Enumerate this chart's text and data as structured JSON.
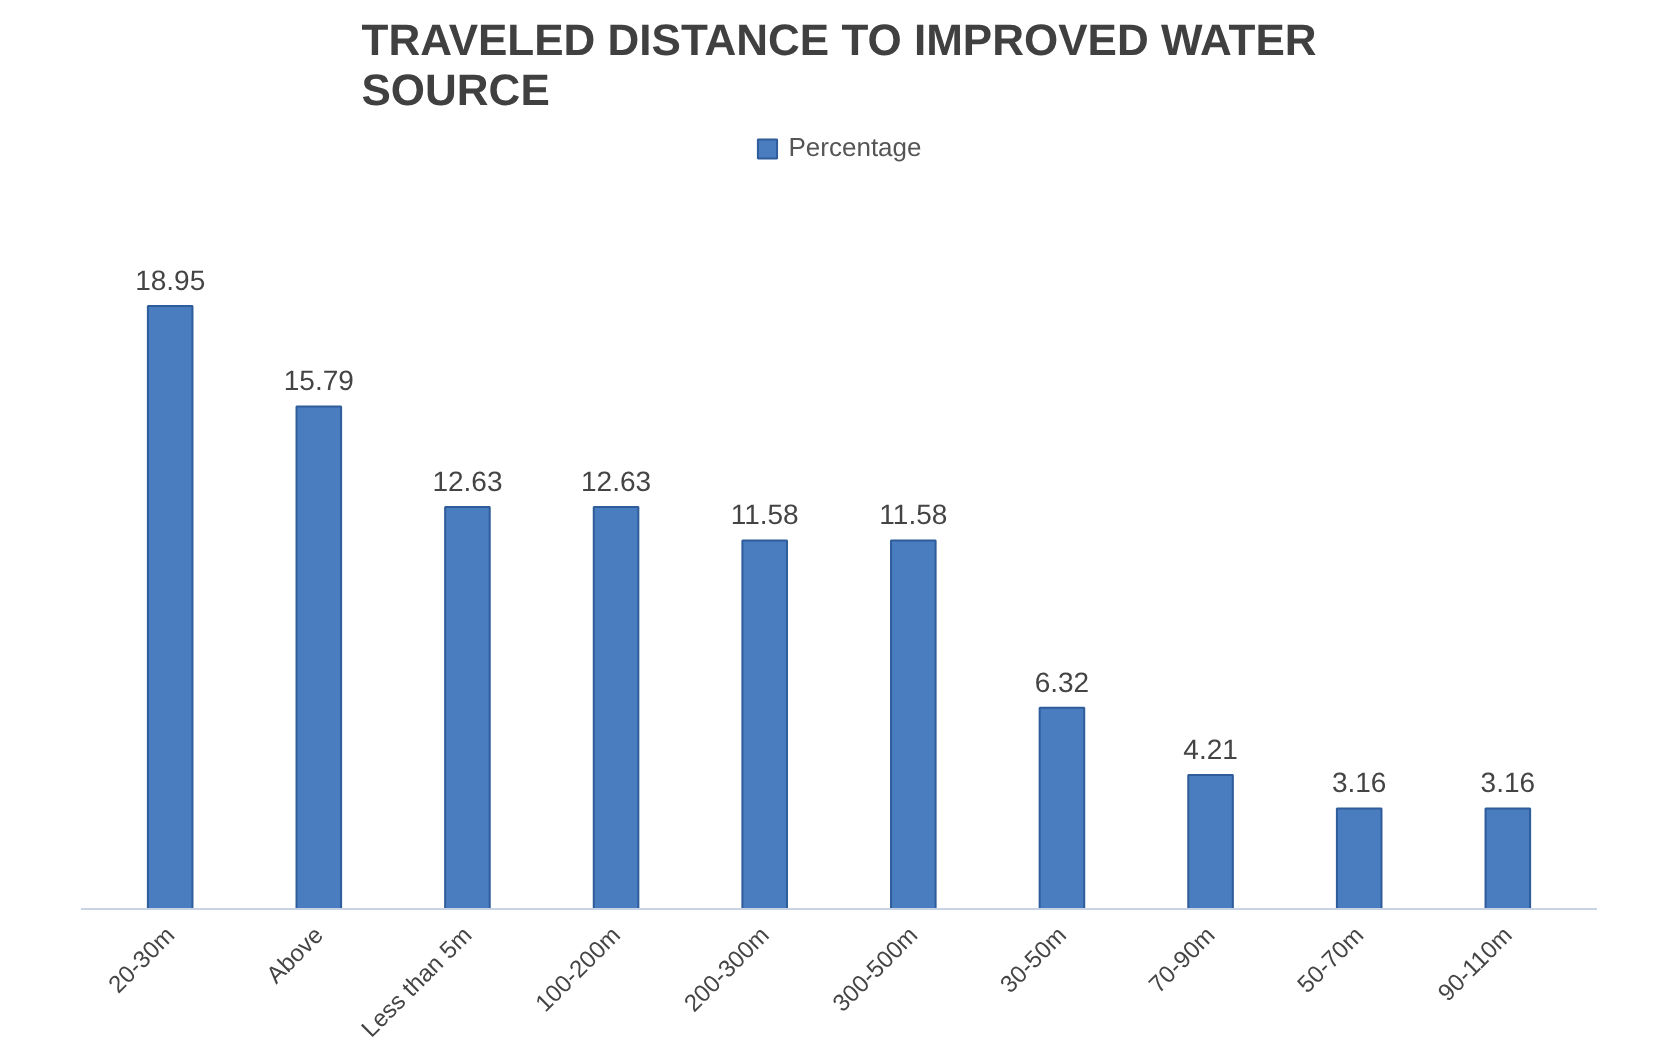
{
  "chart_data": {
    "type": "bar",
    "title": "TRAVELED DISTANCE TO IMPROVED WATER SOURCE",
    "categories": [
      "20-30m",
      "Above",
      "Less than 5m",
      "100-200m",
      "200-300m",
      "300-500m",
      "30-50m",
      "70-90m",
      "50-70m",
      "90-110m"
    ],
    "series": [
      {
        "name": "Percentage",
        "color": "#4a7cc0",
        "values": [
          18.95,
          15.79,
          12.63,
          12.63,
          11.58,
          11.58,
          6.32,
          4.21,
          3.16,
          3.16
        ]
      }
    ],
    "data_labels": true,
    "legend": "top",
    "grid": false
  }
}
